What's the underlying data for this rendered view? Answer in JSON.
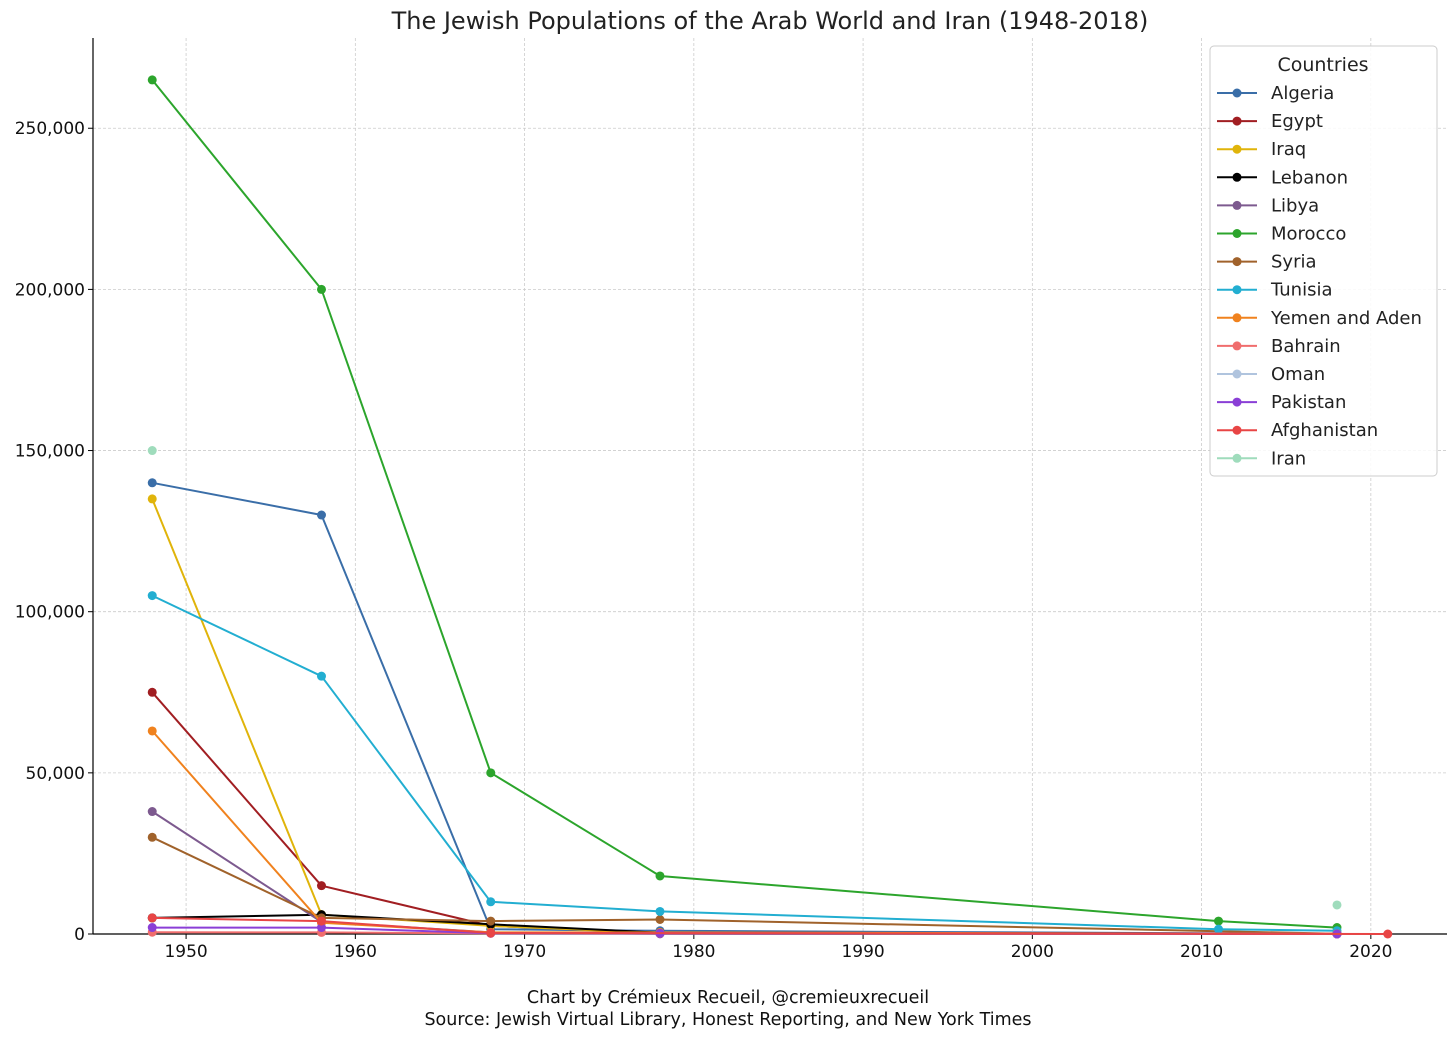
{
  "chart_data": {
    "type": "line",
    "title": "The Jewish Populations of the Arab World and Iran (1948-2018)",
    "xlabel": "",
    "ylabel": "",
    "xlim": [
      1944.5,
      2024.5
    ],
    "ylim": [
      0,
      278000
    ],
    "x_ticks": [
      1950,
      1960,
      1970,
      1980,
      1990,
      2000,
      2010,
      2020
    ],
    "y_ticks": [
      0,
      50000,
      100000,
      150000,
      200000,
      250000
    ],
    "y_tick_labels": [
      "0",
      "50,000",
      "100,000",
      "150,000",
      "200,000",
      "250,000"
    ],
    "grid": true,
    "legend_title": "Countries",
    "legend_position": "top-right",
    "series": [
      {
        "name": "Algeria",
        "color": "#3a6ea8",
        "points": [
          [
            1948,
            140000
          ],
          [
            1958,
            130000
          ],
          [
            1968,
            1500
          ],
          [
            1978,
            1000
          ],
          [
            2018,
            50
          ]
        ]
      },
      {
        "name": "Egypt",
        "color": "#a11e22",
        "points": [
          [
            1948,
            75000
          ],
          [
            1958,
            15000
          ],
          [
            1968,
            2500
          ],
          [
            1978,
            400
          ],
          [
            2018,
            10
          ]
        ]
      },
      {
        "name": "Iraq",
        "color": "#e0b40a",
        "points": [
          [
            1948,
            135000
          ],
          [
            1958,
            6000
          ],
          [
            1968,
            2500
          ],
          [
            1978,
            350
          ],
          [
            2018,
            10
          ]
        ]
      },
      {
        "name": "Lebanon",
        "color": "#000000",
        "points": [
          [
            1948,
            5000
          ],
          [
            1958,
            6000
          ],
          [
            1968,
            3000
          ],
          [
            1978,
            400
          ],
          [
            2018,
            100
          ]
        ]
      },
      {
        "name": "Libya",
        "color": "#7d5a8f",
        "points": [
          [
            1948,
            38000
          ],
          [
            1958,
            3750
          ],
          [
            1968,
            500
          ],
          [
            1978,
            50
          ],
          [
            2018,
            0
          ]
        ]
      },
      {
        "name": "Morocco",
        "color": "#2ca52c",
        "points": [
          [
            1948,
            265000
          ],
          [
            1958,
            200000
          ],
          [
            1968,
            50000
          ],
          [
            1978,
            18000
          ],
          [
            2011,
            4000
          ],
          [
            2018,
            2000
          ]
        ]
      },
      {
        "name": "Syria",
        "color": "#a0622b",
        "points": [
          [
            1948,
            30000
          ],
          [
            1958,
            5000
          ],
          [
            1968,
            4000
          ],
          [
            1978,
            4500
          ],
          [
            2018,
            100
          ]
        ]
      },
      {
        "name": "Tunisia",
        "color": "#22aed1",
        "points": [
          [
            1948,
            105000
          ],
          [
            1958,
            80000
          ],
          [
            1968,
            10000
          ],
          [
            1978,
            7000
          ],
          [
            2011,
            1500
          ],
          [
            2018,
            1000
          ]
        ]
      },
      {
        "name": "Yemen and Aden",
        "color": "#f0821e",
        "points": [
          [
            1948,
            63000
          ],
          [
            1958,
            3500
          ],
          [
            1968,
            500
          ],
          [
            1978,
            500
          ],
          [
            2018,
            50
          ]
        ]
      },
      {
        "name": "Bahrain",
        "color": "#f06d6d",
        "points": [
          [
            1948,
            550
          ],
          [
            1958,
            500
          ],
          [
            1968,
            200
          ],
          [
            1978,
            200
          ],
          [
            2018,
            50
          ]
        ]
      },
      {
        "name": "Oman",
        "color": "#b0c4de",
        "points": []
      },
      {
        "name": "Pakistan",
        "color": "#8a3fd6",
        "points": [
          [
            1948,
            2000
          ],
          [
            1958,
            2000
          ],
          [
            1968,
            250
          ],
          [
            1978,
            250
          ],
          [
            2018,
            0
          ]
        ]
      },
      {
        "name": "Afghanistan",
        "color": "#e84545",
        "points": [
          [
            1948,
            5000
          ],
          [
            1958,
            4000
          ],
          [
            1968,
            300
          ],
          [
            2021,
            0
          ]
        ]
      },
      {
        "name": "Iran",
        "color": "#9fdcbc",
        "points": [
          [
            1948,
            150000
          ],
          [
            2018,
            9000
          ]
        ],
        "connected": false
      }
    ],
    "footer": [
      "Chart by Crémieux Recueil, @cremieuxrecueil",
      "Source: Jewish Virtual Library, Honest Reporting, and New York Times"
    ]
  }
}
